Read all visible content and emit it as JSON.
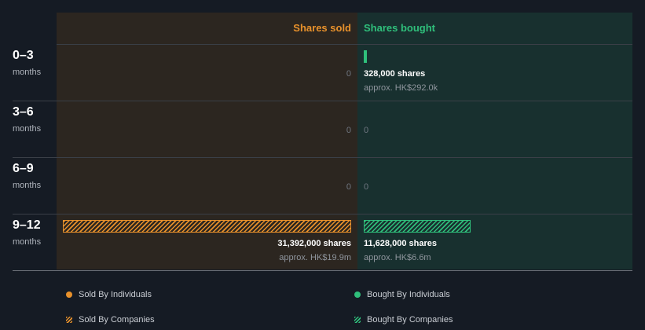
{
  "chart_data": {
    "type": "bar",
    "headers": {
      "sold": "Shares sold",
      "bought": "Shares bought"
    },
    "categories": [
      {
        "period": "0–3",
        "unit": "months"
      },
      {
        "period": "3–6",
        "unit": "months"
      },
      {
        "period": "6–9",
        "unit": "months"
      },
      {
        "period": "9–12",
        "unit": "months"
      }
    ],
    "series": [
      {
        "name": "Sold By Individuals",
        "side": "sold",
        "style": "solid",
        "color": "#e8912b",
        "values": [
          0,
          0,
          0,
          0
        ]
      },
      {
        "name": "Sold By Companies",
        "side": "sold",
        "style": "hatch",
        "color": "#e8912b",
        "values": [
          0,
          0,
          0,
          31392000
        ]
      },
      {
        "name": "Bought By Individuals",
        "side": "bought",
        "style": "solid",
        "color": "#2fbf7b",
        "values": [
          328000,
          0,
          0,
          0
        ]
      },
      {
        "name": "Bought By Companies",
        "side": "bought",
        "style": "hatch",
        "color": "#2fbf7b",
        "values": [
          0,
          0,
          0,
          11628000
        ]
      }
    ],
    "totals": {
      "sold": [
        {
          "shares_label": "",
          "approx_label": "",
          "zero_label": "0"
        },
        {
          "shares_label": "",
          "approx_label": "",
          "zero_label": "0"
        },
        {
          "shares_label": "",
          "approx_label": "",
          "zero_label": "0"
        },
        {
          "shares_label": "31,392,000 shares",
          "approx_label": "approx. HK$19.9m",
          "zero_label": ""
        }
      ],
      "bought": [
        {
          "shares_label": "328,000 shares",
          "approx_label": "approx. HK$292.0k",
          "zero_label": ""
        },
        {
          "shares_label": "",
          "approx_label": "",
          "zero_label": "0"
        },
        {
          "shares_label": "",
          "approx_label": "",
          "zero_label": "0"
        },
        {
          "shares_label": "11,628,000 shares",
          "approx_label": "approx. HK$6.6m",
          "zero_label": ""
        }
      ]
    },
    "xlim": [
      0,
      31392000
    ],
    "legend": [
      {
        "label": "Sold By Individuals",
        "style": "solid",
        "color": "#e8912b"
      },
      {
        "label": "Bought By Individuals",
        "style": "solid",
        "color": "#2fbf7b"
      },
      {
        "label": "Sold By Companies",
        "style": "hatch",
        "color": "#e8912b"
      },
      {
        "label": "Bought By Companies",
        "style": "hatch",
        "color": "#2fbf7b"
      }
    ],
    "legend_position": "bottom",
    "grid": false
  }
}
